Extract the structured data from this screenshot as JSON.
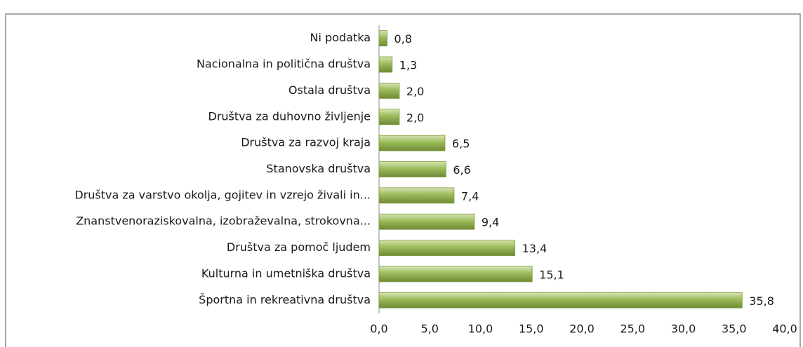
{
  "chart_data": {
    "type": "bar",
    "orientation": "horizontal",
    "categories": [
      "Ni podatka",
      "Nacionalna in politična društva",
      "Ostala društva",
      "Društva za duhovno življenje",
      "Društva za razvoj kraja",
      "Stanovska društva",
      "Društva za varstvo okolja, gojitev in vzrejo živali in...",
      "Znanstvenoraziskovalna, izobraževalna, strokovna...",
      "Društva za pomoč ljudem",
      "Kulturna in umetniška društva",
      "Športna in rekreativna društva"
    ],
    "values": [
      0.8,
      1.3,
      2.0,
      2.0,
      6.5,
      6.6,
      7.4,
      9.4,
      13.4,
      15.1,
      35.8
    ],
    "value_labels": [
      "0,8",
      "1,3",
      "2,0",
      "2,0",
      "6,5",
      "6,6",
      "7,4",
      "9,4",
      "13,4",
      "15,1",
      "35,8"
    ],
    "color": "#9bbb59",
    "xlim": [
      0,
      40
    ],
    "xticks": [
      {
        "value": 0,
        "label": "0,0"
      },
      {
        "value": 5,
        "label": "5,0"
      },
      {
        "value": 10,
        "label": "10,0"
      },
      {
        "value": 15,
        "label": "15,0"
      },
      {
        "value": 20,
        "label": "20,0"
      },
      {
        "value": 25,
        "label": "25,0"
      },
      {
        "value": 30,
        "label": "30,0"
      },
      {
        "value": 35,
        "label": "35,0"
      },
      {
        "value": 40,
        "label": "40,0"
      }
    ],
    "grid": false
  }
}
